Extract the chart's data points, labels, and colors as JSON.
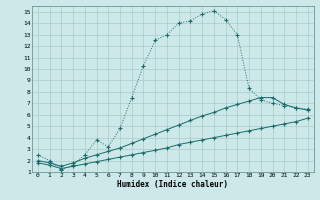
{
  "xlabel": "Humidex (Indice chaleur)",
  "background_color": "#cce8e8",
  "grid_color": "#aacccc",
  "line_color": "#1a6b6b",
  "xlim": [
    -0.5,
    23.5
  ],
  "ylim": [
    1,
    15.5
  ],
  "xticks": [
    0,
    1,
    2,
    3,
    4,
    5,
    6,
    7,
    8,
    9,
    10,
    11,
    12,
    13,
    14,
    15,
    16,
    17,
    18,
    19,
    20,
    21,
    22,
    23
  ],
  "yticks": [
    1,
    2,
    3,
    4,
    5,
    6,
    7,
    8,
    9,
    10,
    11,
    12,
    13,
    14,
    15
  ],
  "series1_x": [
    0,
    1,
    2,
    3,
    4,
    5,
    6,
    7,
    8,
    9,
    10,
    11,
    12,
    13,
    14,
    15,
    16,
    17,
    18,
    19,
    20,
    21,
    22,
    23
  ],
  "series1_y": [
    2.5,
    2.0,
    1.2,
    1.6,
    2.5,
    3.8,
    3.2,
    4.8,
    7.5,
    10.3,
    12.5,
    13.0,
    14.0,
    14.2,
    14.8,
    15.1,
    14.3,
    13.0,
    8.3,
    7.3,
    7.0,
    6.8,
    6.6,
    6.5
  ],
  "series2_x": [
    0,
    1,
    2,
    3,
    4,
    5,
    6,
    7,
    8,
    9,
    10,
    11,
    12,
    13,
    14,
    15,
    16,
    17,
    18,
    19,
    20,
    21,
    22,
    23
  ],
  "series2_y": [
    2.0,
    1.8,
    1.5,
    1.8,
    2.2,
    2.5,
    2.8,
    3.1,
    3.5,
    3.9,
    4.3,
    4.7,
    5.1,
    5.5,
    5.9,
    6.2,
    6.6,
    6.9,
    7.2,
    7.5,
    7.5,
    6.9,
    6.6,
    6.4
  ],
  "series3_x": [
    0,
    1,
    2,
    3,
    4,
    5,
    6,
    7,
    8,
    9,
    10,
    11,
    12,
    13,
    14,
    15,
    16,
    17,
    18,
    19,
    20,
    21,
    22,
    23
  ],
  "series3_y": [
    1.8,
    1.6,
    1.3,
    1.5,
    1.7,
    1.9,
    2.1,
    2.3,
    2.5,
    2.7,
    2.9,
    3.1,
    3.4,
    3.6,
    3.8,
    4.0,
    4.2,
    4.4,
    4.6,
    4.8,
    5.0,
    5.2,
    5.4,
    5.7
  ]
}
